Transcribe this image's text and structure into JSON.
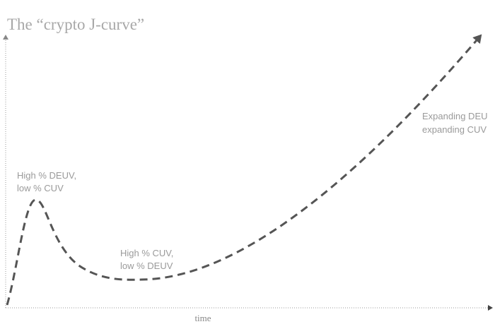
{
  "title": "The “crypto J-curve”",
  "x_axis_label": "time",
  "annotations": [
    {
      "lines": [
        "High % DEUV,",
        "low % CUV"
      ]
    },
    {
      "lines": [
        "High % CUV,",
        "low % DEUV"
      ]
    },
    {
      "lines": [
        "Expanding DEU",
        "expanding CUV"
      ]
    }
  ]
}
